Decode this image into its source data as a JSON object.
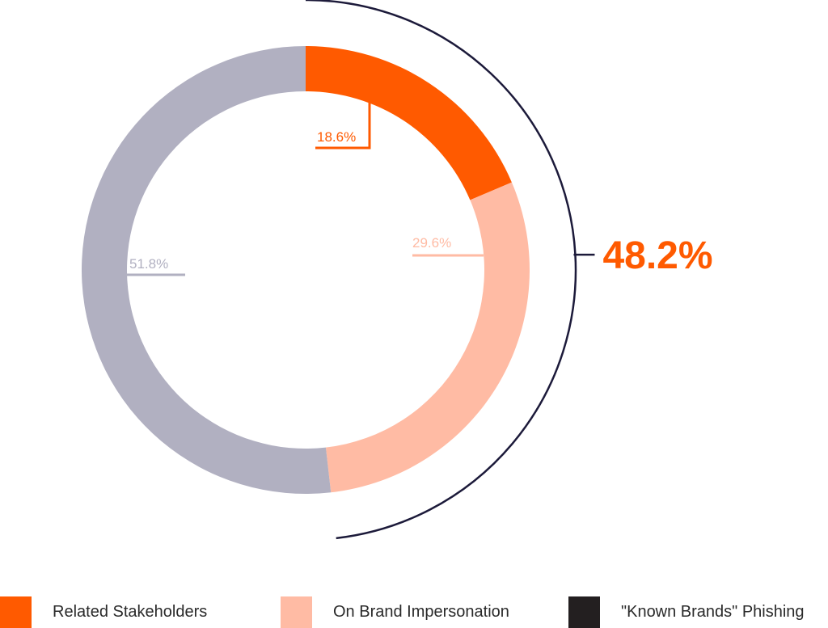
{
  "chart_data": {
    "type": "pie",
    "variant": "donut",
    "slices": [
      {
        "label": "Related Stakeholders",
        "value": 18.6,
        "value_label": "18.6%",
        "color": "#ff5a00",
        "label_color": "#ff5a00"
      },
      {
        "label": "On Brand Impersonation",
        "value": 29.6,
        "value_label": "29.6%",
        "color": "#ffbba4",
        "label_color": "#ffbba4"
      },
      {
        "label": "\"Known Brands\" Phishing",
        "value": 51.8,
        "value_label": "51.8%",
        "color": "#b1b0c1",
        "label_color": "#b1b0c1"
      }
    ],
    "bracket": {
      "label": "48.2%",
      "color": "#ff5a00",
      "line_color": "#1c1a3a"
    },
    "legend": {
      "placement": "bottom",
      "items": [
        {
          "label": "Related Stakeholders",
          "color": "#ff5a00"
        },
        {
          "label": "On Brand Impersonation",
          "color": "#ffbba4"
        },
        {
          "label": "\"Known Brands\" Phishing",
          "color": "#231f20"
        }
      ]
    }
  }
}
